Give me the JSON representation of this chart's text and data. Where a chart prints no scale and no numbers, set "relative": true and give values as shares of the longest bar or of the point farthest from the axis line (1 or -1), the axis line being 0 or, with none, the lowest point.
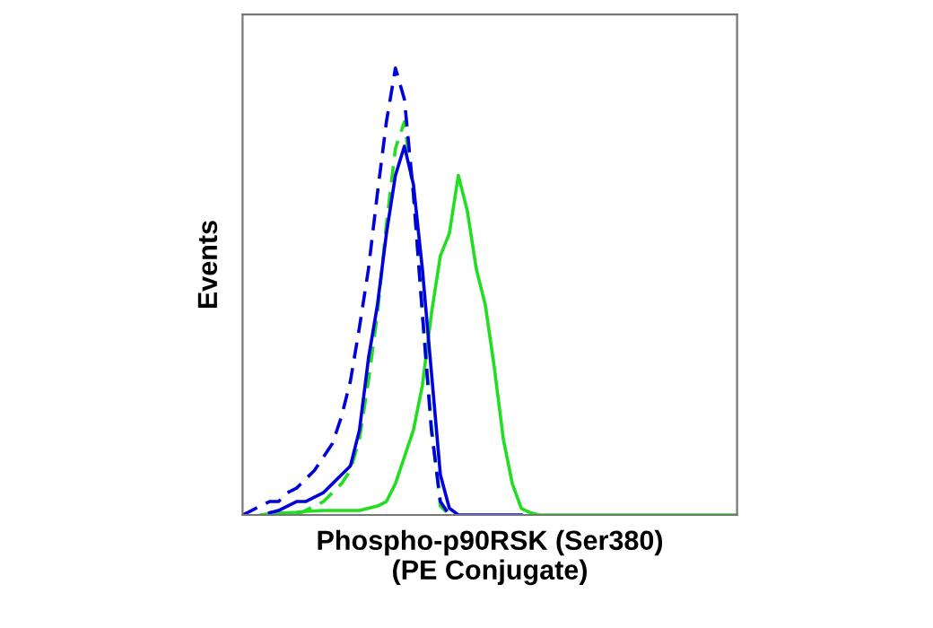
{
  "chart_data": {
    "type": "line",
    "relative": true,
    "xlabel": "Phospho-p90RSK (Ser380)\n(PE Conjugate)",
    "ylabel": "Events",
    "legend": false,
    "marker": "none",
    "categories": [
      null,
      null,
      null,
      null,
      null,
      null,
      null,
      null,
      null,
      null,
      null,
      null,
      null,
      null,
      null,
      null,
      null,
      null,
      null,
      null,
      null,
      null,
      null,
      null,
      null,
      null,
      null,
      null,
      null,
      null,
      null,
      null,
      null,
      null,
      null,
      null,
      null,
      null,
      null,
      null,
      null,
      null,
      null,
      null,
      null,
      null,
      null,
      null,
      null,
      null,
      null,
      null,
      null,
      null,
      null,
      null
    ],
    "series": [
      {
        "color": "#22dd22",
        "line_style": "solid",
        "values": [
          null,
          null,
          0,
          0.003,
          0.004,
          0.005,
          0.006,
          0.008,
          0.009,
          0.01,
          0.01,
          0.01,
          0.01,
          0.01,
          0.015,
          0.02,
          0.03,
          0.07,
          0.13,
          0.19,
          0.29,
          0.45,
          0.58,
          0.63,
          0.76,
          0.68,
          0.55,
          0.47,
          0.33,
          0.17,
          0.07,
          0.015,
          0.005,
          0,
          0,
          0,
          0,
          0,
          0,
          0,
          0,
          0,
          0,
          0,
          0,
          0,
          0,
          0,
          0,
          0,
          0,
          0,
          0,
          0,
          0,
          0
        ]
      },
      {
        "color": "#22dd22",
        "line_style": "dashed",
        "values": [
          null,
          null,
          null,
          null,
          null,
          null,
          0,
          0.01,
          0.02,
          0.03,
          0.05,
          0.07,
          0.1,
          0.17,
          0.3,
          0.45,
          0.65,
          0.82,
          0.88,
          0.72,
          0.45,
          0.2,
          0.02,
          0,
          null,
          null,
          null,
          null,
          null,
          null,
          null,
          null,
          null,
          null,
          null,
          null,
          null,
          null,
          null,
          null,
          null,
          null,
          null,
          null,
          null,
          null,
          null,
          null,
          null,
          null,
          null,
          null,
          null,
          null,
          null,
          null
        ]
      },
      {
        "color": "#0000dd",
        "line_style": "solid",
        "values": [
          null,
          null,
          null,
          0.005,
          0.01,
          0.02,
          0.03,
          0.03,
          0.04,
          0.05,
          0.07,
          0.09,
          0.11,
          0.19,
          0.35,
          0.47,
          0.63,
          0.76,
          0.825,
          0.74,
          0.55,
          0.32,
          0.09,
          0.015,
          0,
          0,
          0,
          0,
          0,
          0,
          0,
          0,
          null,
          null,
          null,
          null,
          null,
          null,
          null,
          null,
          null,
          null,
          null,
          null,
          null,
          null,
          null,
          null,
          null,
          null,
          null,
          null,
          null,
          null,
          null,
          null
        ]
      },
      {
        "color": "#0000dd",
        "line_style": "dashed",
        "values": [
          0,
          0.01,
          0.02,
          0.03,
          0.03,
          0.05,
          0.06,
          0.08,
          0.1,
          0.13,
          0.16,
          0.22,
          0.3,
          0.42,
          0.55,
          0.72,
          0.88,
          1,
          0.93,
          0.72,
          0.45,
          0.19,
          0.03,
          0,
          null,
          null,
          null,
          null,
          null,
          null,
          null,
          null,
          null,
          null,
          null,
          null,
          null,
          null,
          null,
          null,
          null,
          null,
          null,
          null,
          null,
          null,
          null,
          null,
          null,
          null,
          null,
          null,
          null,
          null,
          null,
          null
        ]
      }
    ]
  }
}
